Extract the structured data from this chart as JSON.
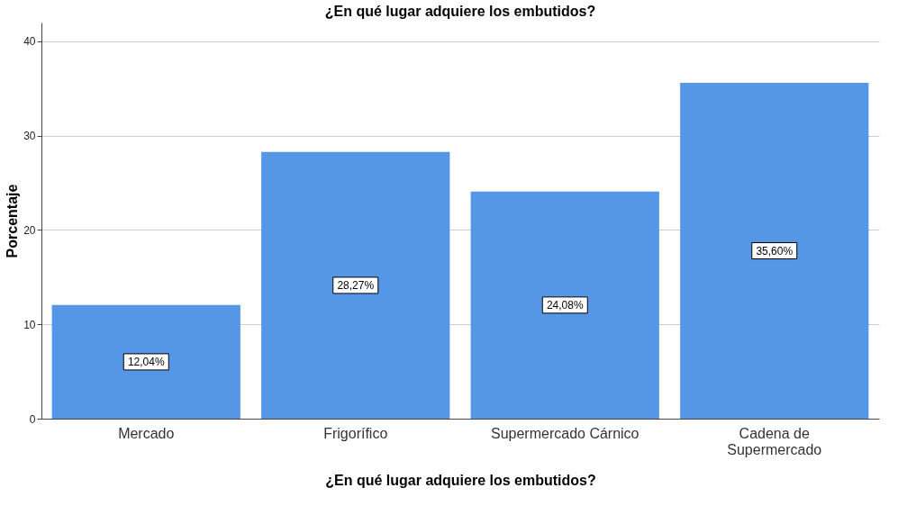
{
  "chart_data": {
    "type": "bar",
    "title": "¿En qué lugar adquiere los embutidos?",
    "xlabel": "¿En qué lugar adquiere los embutidos?",
    "ylabel": "Porcentaje",
    "categories": [
      "Mercado",
      "Frigorífico",
      "Supermercado Cárnico",
      "Cadena de Supermercado"
    ],
    "values": [
      12.04,
      28.27,
      24.08,
      35.6
    ],
    "color": "#5596e6",
    "value_labels": [
      "12,04%",
      "28,27%",
      "24,08%",
      "35,60%"
    ],
    "ylim": [
      0,
      42
    ],
    "yticks": [
      0,
      10,
      20,
      30,
      40
    ],
    "grid": "y"
  }
}
